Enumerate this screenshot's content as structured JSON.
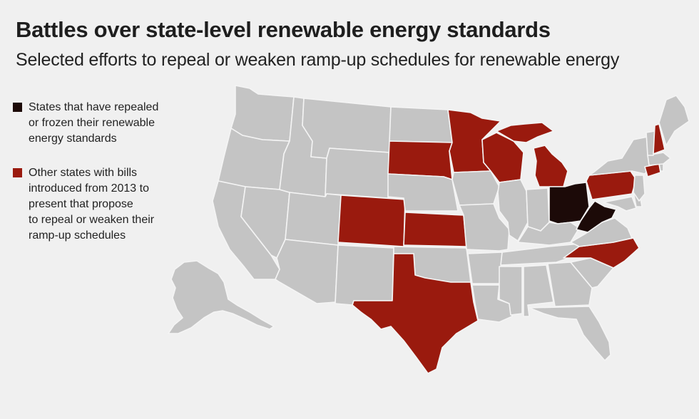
{
  "title": "Battles over state-level renewable energy standards",
  "subtitle": "Selected efforts to repeal or weaken ramp-up schedules for renewable energy",
  "legend": [
    {
      "key": "repealed",
      "label": "States that have repealed\nor frozen their renewable\nenergy standards",
      "color": "#1c0a08"
    },
    {
      "key": "bills",
      "label": "Other states with bills\nintroduced from 2013 to\npresent that propose\nto repeal or weaken their\nramp-up schedules",
      "color": "#9a1a0e"
    }
  ],
  "map": {
    "base_color": "#c4c4c4",
    "states": {
      "repealed": [
        "Ohio",
        "West Virginia"
      ],
      "bills": [
        "South Dakota",
        "Minnesota",
        "Wisconsin",
        "Michigan",
        "Colorado",
        "Kansas",
        "Texas",
        "North Carolina",
        "Pennsylvania",
        "New Hampshire",
        "Connecticut"
      ]
    }
  }
}
